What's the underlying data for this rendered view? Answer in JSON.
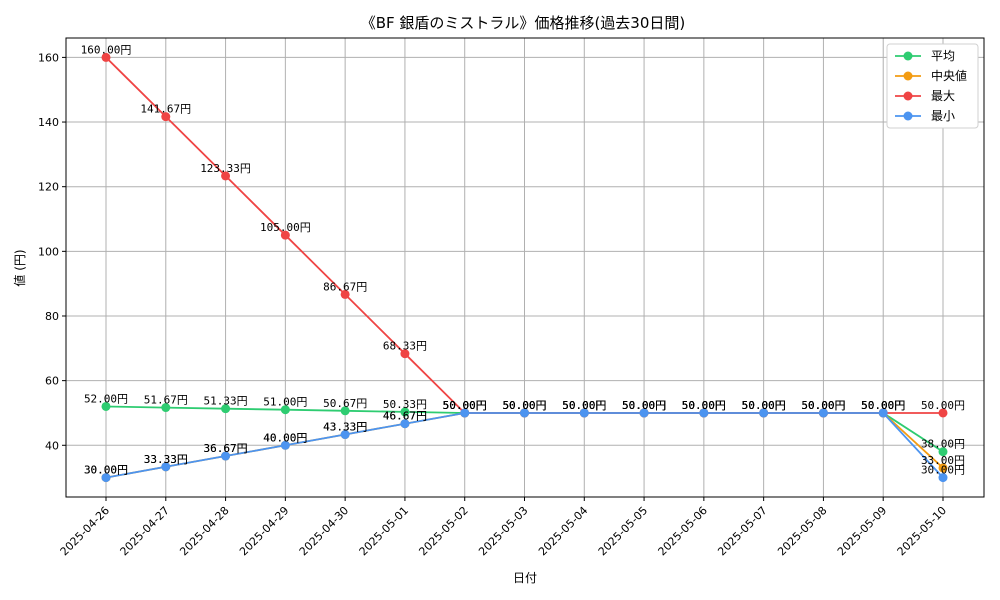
{
  "chart_data": {
    "type": "line",
    "title": "《BF 銀盾のミストラル》価格推移(過去30日間)",
    "xlabel": "日付",
    "ylabel": "値 (円)",
    "x": [
      "2025-04-26",
      "2025-04-27",
      "2025-04-28",
      "2025-04-29",
      "2025-04-30",
      "2025-05-01",
      "2025-05-02",
      "2025-05-03",
      "2025-05-04",
      "2025-05-05",
      "2025-05-06",
      "2025-05-07",
      "2025-05-08",
      "2025-05-09",
      "2025-05-10"
    ],
    "ylim": [
      24,
      166
    ],
    "yticks": [
      40,
      60,
      80,
      100,
      120,
      140,
      160
    ],
    "grid": true,
    "legend_position": "top-right",
    "value_suffix": "円",
    "series": [
      {
        "name": "平均",
        "color": "#2ecc71",
        "values": [
          52.0,
          51.67,
          51.33,
          51.0,
          50.67,
          50.33,
          50.0,
          50.0,
          50.0,
          50.0,
          50.0,
          50.0,
          50.0,
          50.0,
          38.0
        ]
      },
      {
        "name": " 中央値",
        "color": "#f39c12",
        "values": [
          30.0,
          33.33,
          36.67,
          40.0,
          43.33,
          46.67,
          50.0,
          50.0,
          50.0,
          50.0,
          50.0,
          50.0,
          50.0,
          50.0,
          33.0
        ]
      },
      {
        "name": "最大",
        "color": "#ef4444",
        "values": [
          160.0,
          141.67,
          123.33,
          105.0,
          86.67,
          68.33,
          50.0,
          50.0,
          50.0,
          50.0,
          50.0,
          50.0,
          50.0,
          50.0,
          50.0
        ]
      },
      {
        "name": "最小",
        "color": "#4c94f0",
        "values": [
          30.0,
          33.33,
          36.67,
          40.0,
          43.33,
          46.67,
          50.0,
          50.0,
          50.0,
          50.0,
          50.0,
          50.0,
          50.0,
          50.0,
          30.0
        ]
      }
    ]
  }
}
